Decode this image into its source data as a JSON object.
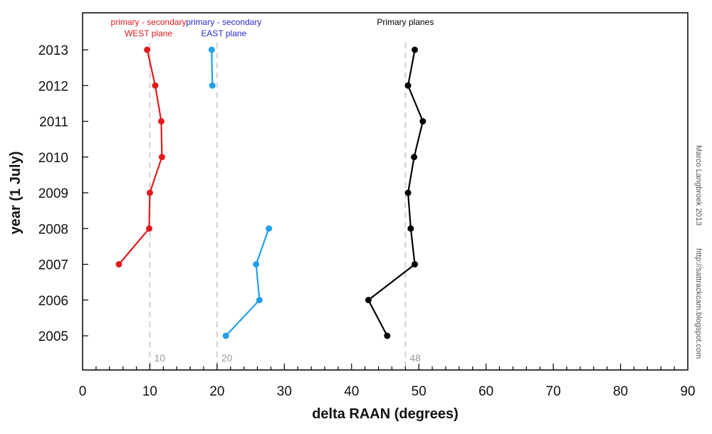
{
  "chart_data": {
    "type": "line",
    "xlabel": "delta RAAN (degrees)",
    "ylabel": "year (1 July)",
    "xlim": [
      0,
      90
    ],
    "xticks": [
      0,
      10,
      20,
      30,
      40,
      50,
      60,
      70,
      80,
      90
    ],
    "yticks": [
      2005,
      2006,
      2007,
      2008,
      2009,
      2010,
      2011,
      2012,
      2013
    ],
    "grid": false,
    "series": [
      {
        "name": "primary - secondary WEST plane",
        "color": "#e31a1c",
        "points": [
          {
            "year": 2007,
            "x": 5.4
          },
          {
            "year": 2008,
            "x": 9.9
          },
          {
            "year": 2009,
            "x": 10.0
          },
          {
            "year": 2010,
            "x": 11.8
          },
          {
            "year": 2011,
            "x": 11.7
          },
          {
            "year": 2012,
            "x": 10.8
          },
          {
            "year": 2013,
            "x": 9.6
          }
        ]
      },
      {
        "name": "primary - secondary EAST plane",
        "color": "#22a0e8",
        "points": [
          {
            "year": 2005,
            "x": 21.3
          },
          {
            "year": 2006,
            "x": 26.3
          },
          {
            "year": 2007,
            "x": 25.8
          },
          {
            "year": 2008,
            "x": 27.7
          }
        ],
        "points_b": [
          {
            "year": 2012,
            "x": 19.3
          },
          {
            "year": 2013,
            "x": 19.2
          }
        ]
      },
      {
        "name": "Primary planes",
        "color": "#000000",
        "points": [
          {
            "year": 2005,
            "x": 45.3
          },
          {
            "year": 2006,
            "x": 42.5
          },
          {
            "year": 2007,
            "x": 49.4
          },
          {
            "year": 2008,
            "x": 48.8
          },
          {
            "year": 2009,
            "x": 48.4
          },
          {
            "year": 2010,
            "x": 49.3
          },
          {
            "year": 2011,
            "x": 50.6
          },
          {
            "year": 2012,
            "x": 48.4
          },
          {
            "year": 2013,
            "x": 49.4
          }
        ]
      }
    ],
    "reference_lines": [
      {
        "x": 10,
        "label": "10"
      },
      {
        "x": 20,
        "label": "20"
      },
      {
        "x": 48,
        "label": "48"
      }
    ],
    "annotations": [
      {
        "lines": [
          "primary - secondary",
          "WEST plane"
        ],
        "color": "#e31a1c",
        "x": 9.8
      },
      {
        "lines": [
          "primary - secondary",
          "EAST plane"
        ],
        "color": "#2a2ad0",
        "x": 21.0
      },
      {
        "lines": [
          "Primary planes"
        ],
        "color": "#000000",
        "x": 48.0
      }
    ],
    "credit": [
      "Marco Langbroek 2013",
      "http://sattrackcam.blogspot.com"
    ]
  }
}
